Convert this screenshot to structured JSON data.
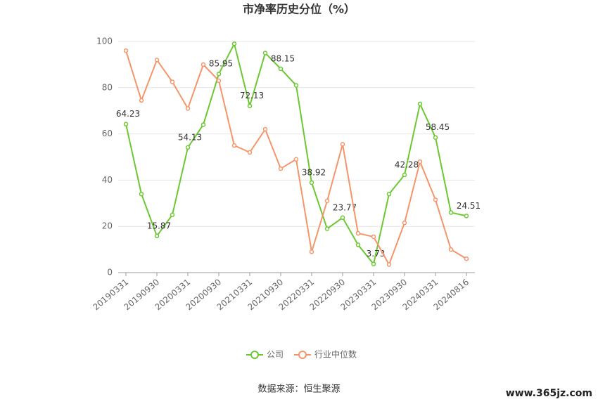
{
  "chart_data": {
    "type": "line",
    "title": "市净率历史分位（%）",
    "categories": [
      "20190331",
      null,
      "20190930",
      null,
      "20200331",
      null,
      "20200930",
      null,
      "20210331",
      null,
      "20210930",
      null,
      "20220331",
      null,
      "20220930",
      null,
      "20230331",
      null,
      "20230930",
      null,
      "20240331",
      null,
      "20240816"
    ],
    "series": [
      {
        "name": "公司",
        "color": "#6cc832",
        "values": [
          64.23,
          34,
          15.87,
          25,
          54.13,
          64,
          85.95,
          99,
          72.13,
          95,
          88.15,
          81,
          38.92,
          19,
          23.77,
          12,
          3.73,
          34,
          42.28,
          73,
          58.45,
          26,
          24.51
        ],
        "value_labels": [
          "64.23",
          null,
          "15.87",
          null,
          "54.13",
          null,
          "85.95",
          null,
          "72.13",
          null,
          "88.15",
          null,
          "38.92",
          null,
          "23.77",
          null,
          "3.73",
          null,
          "42.28",
          null,
          "58.45",
          null,
          "24.51"
        ]
      },
      {
        "name": "行业中位数",
        "color": "#f4956a",
        "values": [
          96,
          74.5,
          92,
          82.5,
          71,
          90,
          83,
          55,
          52,
          62,
          45,
          49,
          9,
          31,
          55.5,
          17,
          15.5,
          3.5,
          21.5,
          48,
          31.5,
          10,
          6
        ]
      }
    ],
    "ylim": [
      0,
      100
    ],
    "yticks": [
      0,
      20,
      40,
      60,
      80,
      100
    ],
    "grid": true,
    "source": "数据来源：恒生聚源",
    "watermark": "www.365jz.com"
  }
}
